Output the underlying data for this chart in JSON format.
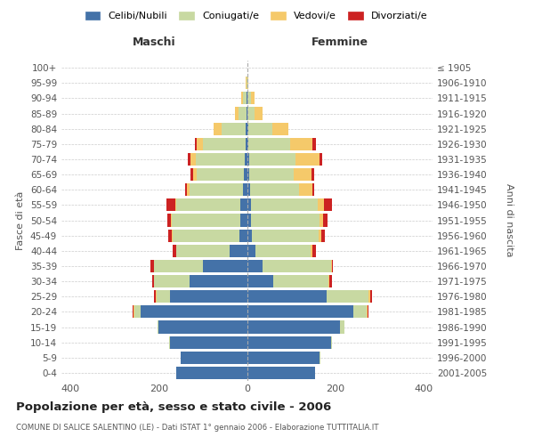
{
  "age_groups": [
    "0-4",
    "5-9",
    "10-14",
    "15-19",
    "20-24",
    "25-29",
    "30-34",
    "35-39",
    "40-44",
    "45-49",
    "50-54",
    "55-59",
    "60-64",
    "65-69",
    "70-74",
    "75-79",
    "80-84",
    "85-89",
    "90-94",
    "95-99",
    "100+"
  ],
  "birth_years": [
    "2001-2005",
    "1996-2000",
    "1991-1995",
    "1986-1990",
    "1981-1985",
    "1976-1980",
    "1971-1975",
    "1966-1970",
    "1961-1965",
    "1956-1960",
    "1951-1955",
    "1946-1950",
    "1941-1945",
    "1936-1940",
    "1931-1935",
    "1926-1930",
    "1921-1925",
    "1916-1920",
    "1911-1915",
    "1906-1910",
    "≤ 1905"
  ],
  "males": {
    "celibi": [
      160,
      150,
      175,
      200,
      240,
      175,
      130,
      100,
      40,
      18,
      15,
      15,
      10,
      8,
      6,
      4,
      3,
      2,
      1,
      0,
      0
    ],
    "coniugati": [
      0,
      1,
      1,
      3,
      15,
      30,
      80,
      110,
      120,
      150,
      155,
      145,
      120,
      105,
      110,
      95,
      55,
      18,
      8,
      2,
      0
    ],
    "vedovi": [
      0,
      0,
      0,
      0,
      2,
      2,
      0,
      0,
      1,
      2,
      2,
      2,
      5,
      8,
      12,
      15,
      18,
      8,
      4,
      1,
      0
    ],
    "divorziati": [
      0,
      0,
      0,
      0,
      2,
      4,
      4,
      8,
      8,
      8,
      8,
      20,
      4,
      7,
      6,
      4,
      0,
      0,
      0,
      0,
      0
    ]
  },
  "females": {
    "nubili": [
      155,
      165,
      190,
      210,
      240,
      180,
      60,
      35,
      20,
      12,
      10,
      10,
      8,
      6,
      5,
      3,
      3,
      2,
      1,
      0,
      0
    ],
    "coniugate": [
      0,
      1,
      2,
      10,
      30,
      95,
      125,
      155,
      125,
      150,
      155,
      150,
      110,
      100,
      105,
      95,
      55,
      15,
      8,
      2,
      0
    ],
    "vedove": [
      0,
      0,
      0,
      1,
      2,
      4,
      2,
      2,
      4,
      6,
      8,
      15,
      30,
      40,
      55,
      50,
      35,
      18,
      8,
      2,
      0
    ],
    "divorziate": [
      0,
      0,
      0,
      0,
      2,
      4,
      6,
      2,
      8,
      8,
      10,
      18,
      4,
      6,
      6,
      8,
      1,
      0,
      0,
      0,
      0
    ]
  },
  "colors": {
    "celibi": "#4472a8",
    "coniugati": "#c8d9a2",
    "vedovi": "#f5c96a",
    "divorziati": "#cc2222"
  },
  "legend_labels": [
    "Celibi/Nubili",
    "Coniugati/e",
    "Vedovi/e",
    "Divorziati/e"
  ],
  "title": "Popolazione per età, sesso e stato civile - 2006",
  "subtitle": "COMUNE DI SALICE SALENTINO (LE) - Dati ISTAT 1° gennaio 2006 - Elaborazione TUTTITALIA.IT",
  "xlabel_left": "Maschi",
  "xlabel_right": "Femmine",
  "ylabel_left": "Fasce di età",
  "ylabel_right": "Anni di nascita",
  "xlim": 420,
  "background_color": "#ffffff",
  "grid_color": "#cccccc"
}
